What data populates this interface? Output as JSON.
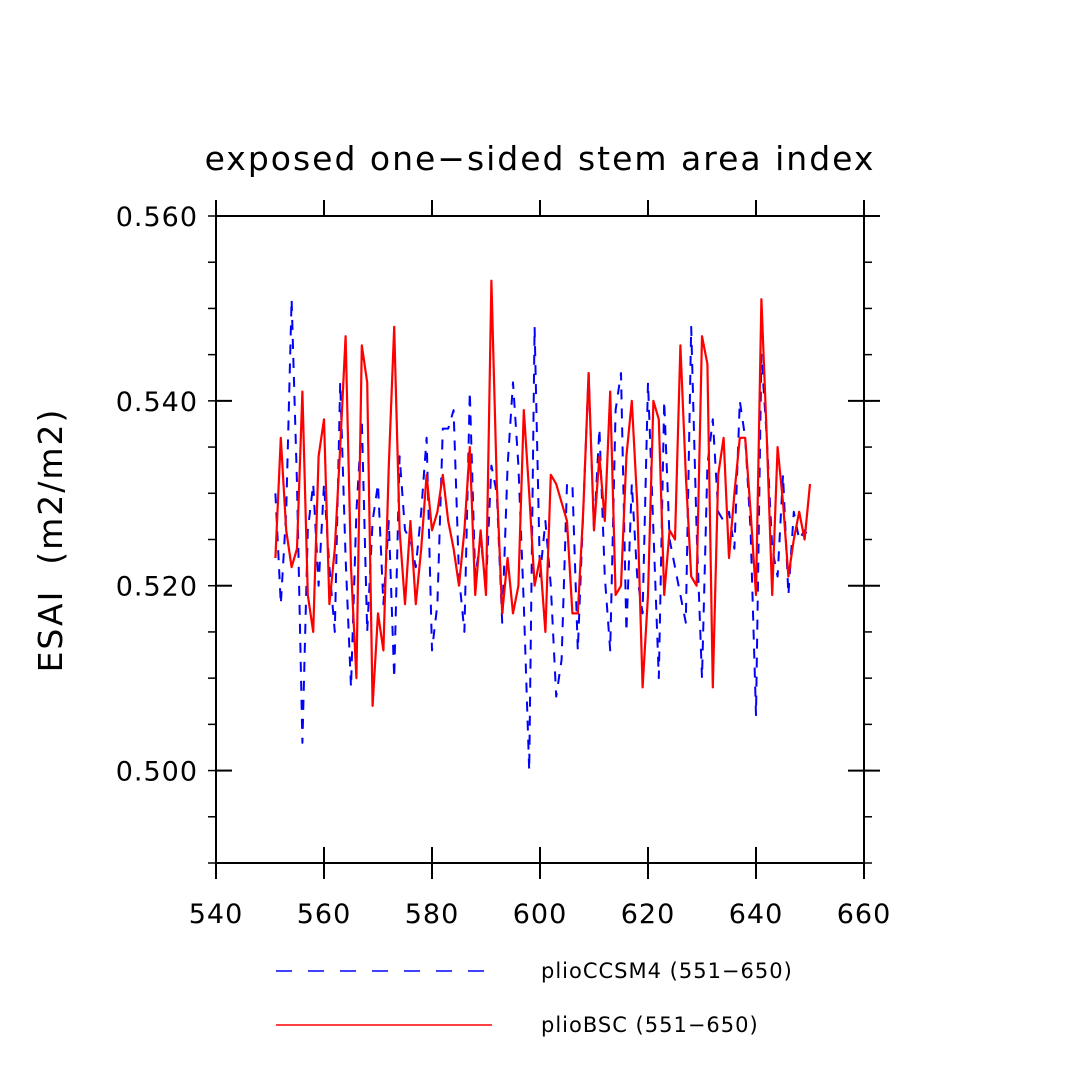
{
  "chart_data": {
    "type": "line",
    "title": "exposed one−sided stem area index",
    "xlabel": "",
    "ylabel": "ESAI  (m2/m2)",
    "xlim": [
      540,
      660
    ],
    "ylim": [
      0.49,
      0.56
    ],
    "x_ticks": [
      540,
      560,
      580,
      600,
      620,
      640,
      660
    ],
    "x_tick_labels": [
      "540",
      "560",
      "580",
      "600",
      "620",
      "640",
      "660"
    ],
    "y_ticks": [
      0.5,
      0.52,
      0.54,
      0.56
    ],
    "y_tick_labels": [
      "0.500",
      "0.520",
      "0.540",
      "0.560"
    ],
    "y_minor_step": 0.005,
    "x_minor_step": 20,
    "legend_position": "bottom",
    "x": [
      551,
      552,
      553,
      554,
      555,
      556,
      557,
      558,
      559,
      560,
      561,
      562,
      563,
      564,
      565,
      566,
      567,
      568,
      569,
      570,
      571,
      572,
      573,
      574,
      575,
      576,
      577,
      578,
      579,
      580,
      581,
      582,
      583,
      584,
      585,
      586,
      587,
      588,
      589,
      590,
      591,
      592,
      593,
      594,
      595,
      596,
      597,
      598,
      599,
      600,
      601,
      602,
      603,
      604,
      605,
      606,
      607,
      608,
      609,
      610,
      611,
      612,
      613,
      614,
      615,
      616,
      617,
      618,
      619,
      620,
      621,
      622,
      623,
      624,
      625,
      626,
      627,
      628,
      629,
      630,
      631,
      632,
      633,
      634,
      635,
      636,
      637,
      638,
      639,
      640,
      641,
      642,
      643,
      644,
      645,
      646,
      647,
      648,
      649,
      650
    ],
    "series": [
      {
        "name": "plioCCSM4 (551−650)",
        "color": "#0000ff",
        "dash": "dashed",
        "values": [
          0.53,
          0.518,
          0.528,
          0.551,
          0.531,
          0.503,
          0.526,
          0.531,
          0.52,
          0.531,
          0.522,
          0.515,
          0.542,
          0.523,
          0.509,
          0.528,
          0.538,
          0.515,
          0.527,
          0.531,
          0.518,
          0.527,
          0.51,
          0.534,
          0.526,
          0.525,
          0.522,
          0.528,
          0.536,
          0.513,
          0.518,
          0.537,
          0.537,
          0.539,
          0.521,
          0.515,
          0.541,
          0.521,
          0.525,
          0.52,
          0.533,
          0.53,
          0.516,
          0.533,
          0.542,
          0.533,
          0.518,
          0.5,
          0.548,
          0.521,
          0.527,
          0.52,
          0.508,
          0.512,
          0.531,
          0.531,
          0.513,
          0.528,
          0.543,
          0.526,
          0.537,
          0.521,
          0.513,
          0.539,
          0.543,
          0.515,
          0.531,
          0.521,
          0.517,
          0.542,
          0.526,
          0.51,
          0.54,
          0.525,
          0.522,
          0.519,
          0.516,
          0.548,
          0.526,
          0.51,
          0.533,
          0.538,
          0.528,
          0.527,
          0.528,
          0.524,
          0.54,
          0.536,
          0.526,
          0.506,
          0.545,
          0.536,
          0.524,
          0.521,
          0.532,
          0.519,
          0.528,
          0.525,
          0.526,
          0.525
        ]
      },
      {
        "name": "plioBSC (551−650)",
        "color": "#ff0000",
        "dash": "solid",
        "values": [
          0.523,
          0.536,
          0.526,
          0.522,
          0.524,
          0.541,
          0.519,
          0.515,
          0.534,
          0.538,
          0.518,
          0.524,
          0.535,
          0.547,
          0.522,
          0.51,
          0.546,
          0.542,
          0.507,
          0.517,
          0.513,
          0.533,
          0.548,
          0.526,
          0.518,
          0.527,
          0.518,
          0.524,
          0.532,
          0.526,
          0.528,
          0.532,
          0.527,
          0.524,
          0.52,
          0.526,
          0.535,
          0.519,
          0.526,
          0.519,
          0.553,
          0.531,
          0.517,
          0.523,
          0.517,
          0.52,
          0.539,
          0.53,
          0.52,
          0.523,
          0.515,
          0.532,
          0.531,
          0.529,
          0.527,
          0.517,
          0.517,
          0.528,
          0.543,
          0.526,
          0.534,
          0.527,
          0.541,
          0.519,
          0.52,
          0.534,
          0.54,
          0.529,
          0.509,
          0.519,
          0.54,
          0.538,
          0.519,
          0.526,
          0.525,
          0.546,
          0.532,
          0.521,
          0.52,
          0.547,
          0.544,
          0.509,
          0.532,
          0.536,
          0.523,
          0.53,
          0.536,
          0.536,
          0.528,
          0.519,
          0.551,
          0.536,
          0.519,
          0.535,
          0.529,
          0.521,
          0.525,
          0.528,
          0.525,
          0.531
        ]
      }
    ]
  }
}
